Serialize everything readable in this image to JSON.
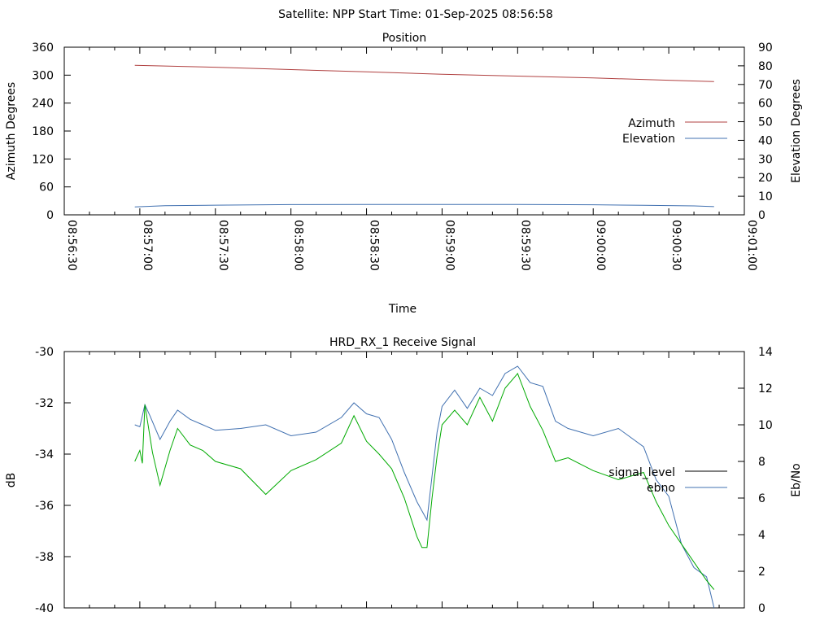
{
  "header": {
    "title": "Satellite: NPP    Start Time: 01-Sep-2025 08:56:58"
  },
  "chart_data": [
    {
      "type": "line",
      "title": "Position",
      "xlabel": "Time",
      "ylabel_left": "Azimuth Degrees",
      "ylabel_right": "Elevation Degrees",
      "x_tick_labels": [
        "08:56:30",
        "08:57:00",
        "08:57:30",
        "08:58:00",
        "08:58:30",
        "08:59:00",
        "08:59:30",
        "09:00:00",
        "09:00:30",
        "09:01:00"
      ],
      "y_left_ticks": [
        0,
        60,
        120,
        180,
        240,
        300,
        360
      ],
      "y_right_ticks": [
        0,
        10,
        20,
        30,
        40,
        50,
        60,
        70,
        80,
        90
      ],
      "xlim": [
        "08:56:30",
        "09:01:00"
      ],
      "ylim_left": [
        0,
        360
      ],
      "ylim_right": [
        0,
        90
      ],
      "legend_position": "right",
      "series": [
        {
          "name": "Azimuth",
          "axis": "left",
          "color": "#b04040",
          "x": [
            "08:56:58",
            "08:57:30",
            "08:58:00",
            "08:58:30",
            "08:59:00",
            "08:59:30",
            "09:00:00",
            "09:00:30",
            "09:00:48"
          ],
          "values": [
            321,
            317,
            312,
            307,
            302,
            298,
            294,
            289,
            286
          ]
        },
        {
          "name": "Elevation",
          "axis": "right",
          "color": "#4070b0",
          "x": [
            "08:56:58",
            "08:57:10",
            "08:57:30",
            "08:58:00",
            "08:58:30",
            "08:59:00",
            "08:59:30",
            "09:00:00",
            "09:00:20",
            "09:00:40",
            "09:00:48"
          ],
          "values": [
            4.3,
            4.9,
            5.2,
            5.5,
            5.6,
            5.6,
            5.6,
            5.4,
            5.1,
            4.8,
            4.4
          ]
        }
      ]
    },
    {
      "type": "line",
      "title": "HRD_RX_1 Receive Signal",
      "ylabel_left": "dB",
      "ylabel_right": "Eb/No",
      "y_left_ticks": [
        -40,
        -38,
        -36,
        -34,
        -32,
        -30
      ],
      "y_right_ticks": [
        0,
        2,
        4,
        6,
        8,
        10,
        12,
        14
      ],
      "xlim": [
        "08:56:30",
        "09:01:00"
      ],
      "ylim_left": [
        -40,
        -30
      ],
      "ylim_right": [
        0,
        14
      ],
      "legend_position": "right",
      "legend_entries": [
        {
          "name": "signal_level",
          "color": "#000000"
        },
        {
          "name": "ebno",
          "color": "#4070b0"
        }
      ],
      "series": [
        {
          "name": "ebno",
          "axis": "right",
          "color": "#4070b0",
          "x": [
            "08:56:58",
            "08:57:00",
            "08:57:02",
            "08:57:04",
            "08:57:08",
            "08:57:12",
            "08:57:15",
            "08:57:20",
            "08:57:25",
            "08:57:30",
            "08:57:40",
            "08:57:50",
            "08:58:00",
            "08:58:10",
            "08:58:20",
            "08:58:25",
            "08:58:30",
            "08:58:35",
            "08:58:40",
            "08:58:45",
            "08:58:50",
            "08:58:52",
            "08:58:54",
            "08:58:56",
            "08:58:58",
            "08:59:00",
            "08:59:05",
            "08:59:10",
            "08:59:15",
            "08:59:20",
            "08:59:25",
            "08:59:30",
            "08:59:35",
            "08:59:40",
            "08:59:45",
            "08:59:50",
            "09:00:00",
            "09:00:10",
            "09:00:20",
            "09:00:25",
            "09:00:30",
            "09:00:35",
            "09:00:40",
            "09:00:45",
            "09:00:48"
          ],
          "values": [
            10.0,
            9.9,
            11.1,
            10.5,
            9.2,
            10.2,
            10.8,
            10.3,
            10.0,
            9.7,
            9.8,
            10.0,
            9.4,
            9.6,
            10.4,
            11.2,
            10.6,
            10.4,
            9.2,
            7.4,
            5.8,
            5.3,
            4.8,
            7.2,
            9.6,
            11.0,
            11.9,
            10.9,
            12.0,
            11.6,
            12.8,
            13.2,
            12.3,
            12.1,
            10.2,
            9.8,
            9.4,
            9.8,
            8.8,
            7.0,
            6.1,
            3.5,
            2.2,
            1.7,
            0.0
          ]
        },
        {
          "name": "",
          "axis": "right",
          "color": "#00aa00",
          "x": [
            "08:56:58",
            "08:57:00",
            "08:57:01",
            "08:57:02",
            "08:57:05",
            "08:57:08",
            "08:57:12",
            "08:57:15",
            "08:57:20",
            "08:57:25",
            "08:57:30",
            "08:57:40",
            "08:57:50",
            "08:58:00",
            "08:58:10",
            "08:58:20",
            "08:58:25",
            "08:58:30",
            "08:58:35",
            "08:58:40",
            "08:58:45",
            "08:58:50",
            "08:58:52",
            "08:58:54",
            "08:58:56",
            "08:58:58",
            "08:59:00",
            "08:59:05",
            "08:59:10",
            "08:59:15",
            "08:59:20",
            "08:59:25",
            "08:59:30",
            "08:59:35",
            "08:59:40",
            "08:59:45",
            "08:59:50",
            "09:00:00",
            "09:00:10",
            "09:00:20",
            "09:00:25",
            "09:00:30",
            "09:00:35",
            "09:00:40",
            "09:00:45",
            "09:00:48"
          ],
          "values": [
            8.0,
            8.6,
            7.9,
            11.1,
            8.5,
            6.7,
            8.6,
            9.8,
            8.9,
            8.6,
            8.0,
            7.6,
            6.2,
            7.5,
            8.1,
            9.0,
            10.5,
            9.1,
            8.4,
            7.6,
            6.0,
            3.9,
            3.3,
            3.3,
            6.0,
            8.3,
            10.0,
            10.8,
            10.0,
            11.5,
            10.2,
            12.0,
            12.8,
            11.0,
            9.7,
            8.0,
            8.2,
            7.5,
            7.0,
            7.4,
            5.8,
            4.5,
            3.5,
            2.5,
            1.5,
            1.0
          ]
        }
      ]
    }
  ]
}
